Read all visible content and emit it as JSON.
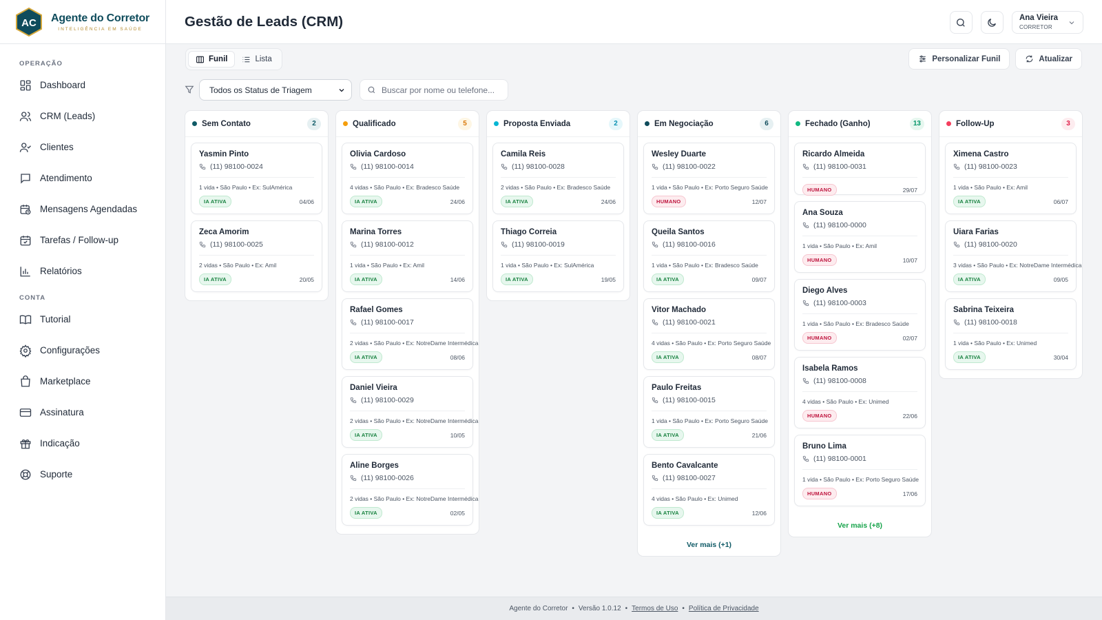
{
  "brand": {
    "initials": "AC",
    "name": "Agente do Corretor",
    "tagline": "INTELIGÊNCIA EM SAÚDE"
  },
  "sidebar": {
    "section1": "OPERAÇÃO",
    "items1": [
      {
        "label": "Dashboard",
        "icon": "dashboard-icon"
      },
      {
        "label": "CRM (Leads)",
        "icon": "users-icon"
      },
      {
        "label": "Clientes",
        "icon": "user-check-icon"
      },
      {
        "label": "Atendimento",
        "icon": "chat-icon"
      },
      {
        "label": "Mensagens Agendadas",
        "icon": "calendar-clock-icon"
      },
      {
        "label": "Tarefas / Follow-up",
        "icon": "calendar-check-icon"
      },
      {
        "label": "Relatórios",
        "icon": "bar-chart-icon"
      }
    ],
    "section2": "CONTA",
    "items2": [
      {
        "label": "Tutorial",
        "icon": "book-icon"
      },
      {
        "label": "Configurações",
        "icon": "gear-icon"
      },
      {
        "label": "Marketplace",
        "icon": "shopping-bag-icon"
      },
      {
        "label": "Assinatura",
        "icon": "credit-card-icon"
      },
      {
        "label": "Indicação",
        "icon": "gift-icon"
      },
      {
        "label": "Suporte",
        "icon": "lifebuoy-icon"
      }
    ]
  },
  "header": {
    "title": "Gestão de Leads (CRM)",
    "user_name": "Ana Vieira",
    "user_role": "CORRETOR"
  },
  "toolbar": {
    "view_funnel": "Funil",
    "view_list": "Lista",
    "customize": "Personalizar Funil",
    "refresh": "Atualizar",
    "status_filter": "Todos os Status de Triagem",
    "search_placeholder": "Buscar por nome ou telefone..."
  },
  "colors": {
    "primary": "#0f4c5c",
    "ia_badge": "#15803d",
    "human_badge": "#be123c"
  },
  "columns": [
    {
      "title": "Sem Contato",
      "count": "2",
      "dot": "#0f5a66",
      "count_bg": "#e6f0f2",
      "count_fg": "#0f5a66",
      "cards": [
        {
          "name": "Yasmin Pinto",
          "phone": "(11) 98100-0024",
          "info": "1 vida • São Paulo • Ex: SulAmérica",
          "badge": "IA ATIVA",
          "type": "ia",
          "date": "04/06"
        },
        {
          "name": "Zeca Amorim",
          "phone": "(11) 98100-0025",
          "info": "2 vidas • São Paulo • Ex: Amil",
          "badge": "IA ATIVA",
          "type": "ia",
          "date": "20/05"
        }
      ]
    },
    {
      "title": "Qualificado",
      "count": "5",
      "dot": "#f59e0b",
      "count_bg": "#fef6e4",
      "count_fg": "#d97706",
      "cards": [
        {
          "name": "Olivia Cardoso",
          "phone": "(11) 98100-0014",
          "info": "4 vidas • São Paulo • Ex: Bradesco Saúde",
          "badge": "IA ATIVA",
          "type": "ia",
          "date": "24/06"
        },
        {
          "name": "Marina Torres",
          "phone": "(11) 98100-0012",
          "info": "1 vida • São Paulo • Ex: Amil",
          "badge": "IA ATIVA",
          "type": "ia",
          "date": "14/06"
        },
        {
          "name": "Rafael Gomes",
          "phone": "(11) 98100-0017",
          "info": "2 vidas • São Paulo • Ex: NotreDame Intermédica",
          "badge": "IA ATIVA",
          "type": "ia",
          "date": "08/06"
        },
        {
          "name": "Daniel Vieira",
          "phone": "(11) 98100-0029",
          "info": "2 vidas • São Paulo • Ex: NotreDame Intermédica",
          "badge": "IA ATIVA",
          "type": "ia",
          "date": "10/05"
        },
        {
          "name": "Aline Borges",
          "phone": "(11) 98100-0026",
          "info": "2 vidas • São Paulo • Ex: NotreDame Intermédica",
          "badge": "IA ATIVA",
          "type": "ia",
          "date": "02/05"
        }
      ]
    },
    {
      "title": "Proposta Enviada",
      "count": "2",
      "dot": "#06b6d4",
      "count_bg": "#e5f7fb",
      "count_fg": "#0891b2",
      "cards": [
        {
          "name": "Camila Reis",
          "phone": "(11) 98100-0028",
          "info": "2 vidas • São Paulo • Ex: Bradesco Saúde",
          "badge": "IA ATIVA",
          "type": "ia",
          "date": "24/06"
        },
        {
          "name": "Thiago Correia",
          "phone": "(11) 98100-0019",
          "info": "1 vida • São Paulo • Ex: SulAmérica",
          "badge": "IA ATIVA",
          "type": "ia",
          "date": "19/05"
        }
      ]
    },
    {
      "title": "Em Negociação",
      "count": "6",
      "dot": "#0f4c5c",
      "count_bg": "#e6f0f2",
      "count_fg": "#0f4c5c",
      "cards": [
        {
          "name": "Wesley Duarte",
          "phone": "(11) 98100-0022",
          "info": "1 vida • São Paulo • Ex: Porto Seguro Saúde",
          "badge": "HUMANO",
          "type": "hum",
          "date": "12/07"
        },
        {
          "name": "Queila Santos",
          "phone": "(11) 98100-0016",
          "info": "1 vida • São Paulo • Ex: Bradesco Saúde",
          "badge": "IA ATIVA",
          "type": "ia",
          "date": "09/07"
        },
        {
          "name": "Vitor Machado",
          "phone": "(11) 98100-0021",
          "info": "4 vidas • São Paulo • Ex: Porto Seguro Saúde",
          "badge": "IA ATIVA",
          "type": "ia",
          "date": "08/07"
        },
        {
          "name": "Paulo Freitas",
          "phone": "(11) 98100-0015",
          "info": "1 vida • São Paulo • Ex: Porto Seguro Saúde",
          "badge": "IA ATIVA",
          "type": "ia",
          "date": "21/06"
        },
        {
          "name": "Bento Cavalcante",
          "phone": "(11) 98100-0027",
          "info": "4 vidas • São Paulo • Ex: Unimed",
          "badge": "IA ATIVA",
          "type": "ia",
          "date": "12/06"
        }
      ],
      "more": "Ver mais (+1)",
      "more_style": "teal"
    },
    {
      "title": "Fechado (Ganho)",
      "count": "13",
      "dot": "#10b981",
      "count_bg": "#e6f7ef",
      "count_fg": "#059669",
      "cards": [
        {
          "name": "Ricardo Almeida",
          "phone": "(11) 98100-0031",
          "info": "",
          "badge": "HUMANO",
          "type": "hum",
          "date": "29/07"
        },
        {
          "name": "Ana Souza",
          "phone": "(11) 98100-0000",
          "info": "1 vida • São Paulo • Ex: Amil",
          "badge": "HUMANO",
          "type": "hum",
          "date": "10/07"
        },
        {
          "name": "Diego Alves",
          "phone": "(11) 98100-0003",
          "info": "1 vida • São Paulo • Ex: Bradesco Saúde",
          "badge": "HUMANO",
          "type": "hum",
          "date": "02/07"
        },
        {
          "name": "Isabela Ramos",
          "phone": "(11) 98100-0008",
          "info": "4 vidas • São Paulo • Ex: Unimed",
          "badge": "HUMANO",
          "type": "hum",
          "date": "22/06"
        },
        {
          "name": "Bruno Lima",
          "phone": "(11) 98100-0001",
          "info": "1 vida • São Paulo • Ex: Porto Seguro Saúde",
          "badge": "HUMANO",
          "type": "hum",
          "date": "17/06"
        }
      ],
      "more": "Ver mais (+8)",
      "more_style": "green"
    },
    {
      "title": "Follow-Up",
      "count": "3",
      "dot": "#f43f5e",
      "count_bg": "#fdecef",
      "count_fg": "#e11d48",
      "cards": [
        {
          "name": "Ximena Castro",
          "phone": "(11) 98100-0023",
          "info": "1 vida • São Paulo • Ex: Amil",
          "badge": "IA ATIVA",
          "type": "ia",
          "date": "06/07"
        },
        {
          "name": "Uiara Farias",
          "phone": "(11) 98100-0020",
          "info": "3 vidas • São Paulo • Ex: NotreDame Intermédica",
          "badge": "IA ATIVA",
          "type": "ia",
          "date": "09/05"
        },
        {
          "name": "Sabrina Teixeira",
          "phone": "(11) 98100-0018",
          "info": "1 vida • São Paulo • Ex: Unimed",
          "badge": "IA ATIVA",
          "type": "ia",
          "date": "30/04"
        }
      ]
    }
  ],
  "footer": {
    "brand": "Agente do Corretor",
    "version": "Versão 1.0.12",
    "terms": "Termos de Uso",
    "privacy": "Política de Privacidade"
  }
}
